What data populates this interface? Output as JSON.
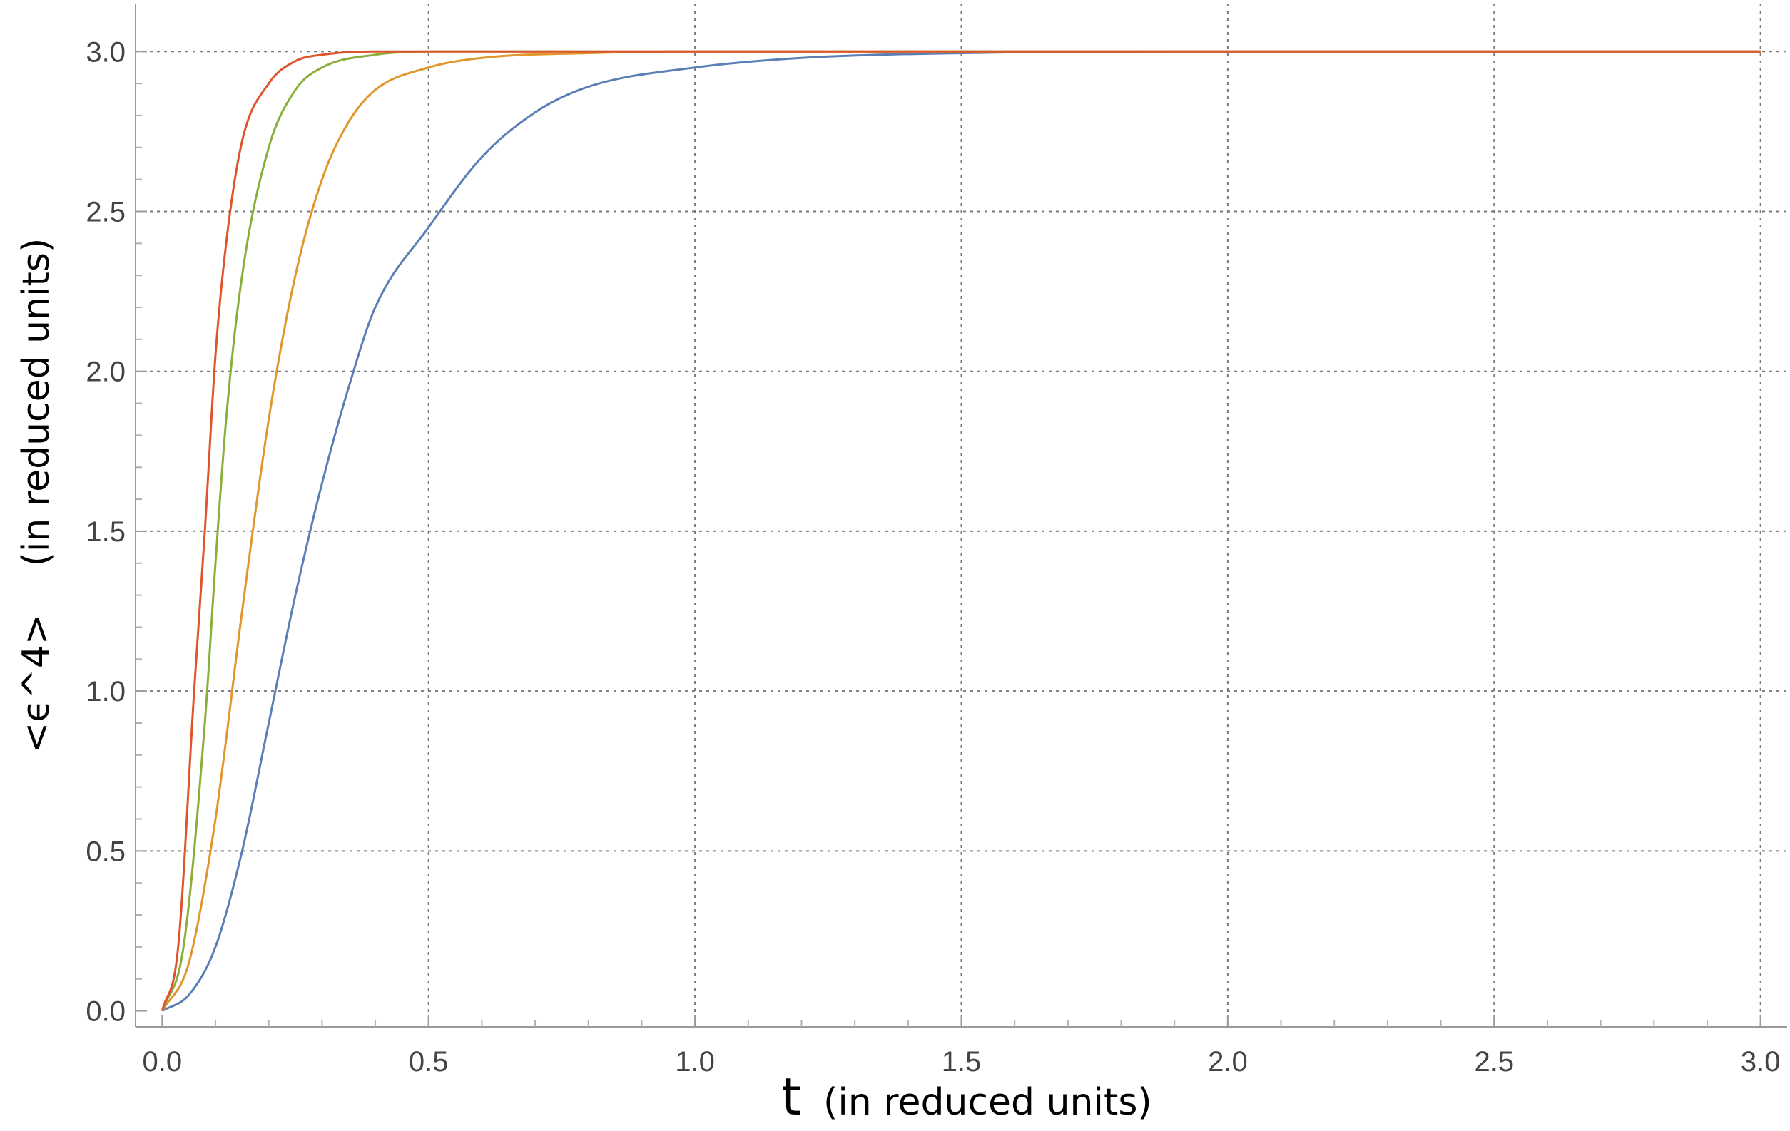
{
  "chart_data": {
    "type": "line",
    "xlabel_symbol": "t",
    "xlabel": "(in reduced units)",
    "ylabel": "<ϵ^4>    (in reduced units)",
    "xlim": [
      -0.05,
      3.05
    ],
    "ylim": [
      -0.05,
      3.15
    ],
    "x_ticks": [
      0.0,
      0.5,
      1.0,
      1.5,
      2.0,
      2.5,
      3.0
    ],
    "x_tick_labels": [
      "0.0",
      "0.5",
      "1.0",
      "1.5",
      "2.0",
      "2.5",
      "3.0"
    ],
    "y_ticks": [
      0.0,
      0.5,
      1.0,
      1.5,
      2.0,
      2.5,
      3.0
    ],
    "y_tick_labels": [
      "0.0",
      "0.5",
      "1.0",
      "1.5",
      "2.0",
      "2.5",
      "3.0"
    ],
    "grid": true,
    "series": [
      {
        "color": "#5b7fb5",
        "points": [
          [
            0.0,
            0.0
          ],
          [
            0.05,
            0.05
          ],
          [
            0.1,
            0.2
          ],
          [
            0.15,
            0.5
          ],
          [
            0.2,
            0.9
          ],
          [
            0.25,
            1.3
          ],
          [
            0.3,
            1.65
          ],
          [
            0.35,
            1.95
          ],
          [
            0.4,
            2.2
          ],
          [
            0.5,
            2.45
          ],
          [
            0.6,
            2.67
          ],
          [
            0.7,
            2.81
          ],
          [
            0.8,
            2.89
          ],
          [
            1.0,
            2.95
          ],
          [
            1.2,
            2.98
          ],
          [
            1.5,
            2.995
          ],
          [
            2.0,
            3.0
          ],
          [
            3.0,
            3.0
          ]
        ]
      },
      {
        "color": "#e0962a",
        "points": [
          [
            0.0,
            0.0
          ],
          [
            0.05,
            0.15
          ],
          [
            0.1,
            0.6
          ],
          [
            0.15,
            1.25
          ],
          [
            0.2,
            1.85
          ],
          [
            0.25,
            2.3
          ],
          [
            0.3,
            2.6
          ],
          [
            0.35,
            2.78
          ],
          [
            0.4,
            2.88
          ],
          [
            0.5,
            2.95
          ],
          [
            0.6,
            2.98
          ],
          [
            0.8,
            2.995
          ],
          [
            1.0,
            3.0
          ],
          [
            3.0,
            3.0
          ]
        ]
      },
      {
        "color": "#8aae3a",
        "points": [
          [
            0.0,
            0.0
          ],
          [
            0.04,
            0.2
          ],
          [
            0.08,
            0.9
          ],
          [
            0.1,
            1.4
          ],
          [
            0.12,
            1.85
          ],
          [
            0.15,
            2.3
          ],
          [
            0.2,
            2.7
          ],
          [
            0.25,
            2.88
          ],
          [
            0.3,
            2.95
          ],
          [
            0.4,
            2.99
          ],
          [
            0.5,
            3.0
          ],
          [
            3.0,
            3.0
          ]
        ]
      },
      {
        "color": "#e0542c",
        "points": [
          [
            0.0,
            0.0
          ],
          [
            0.03,
            0.2
          ],
          [
            0.06,
            1.0
          ],
          [
            0.08,
            1.5
          ],
          [
            0.1,
            2.05
          ],
          [
            0.12,
            2.4
          ],
          [
            0.15,
            2.72
          ],
          [
            0.2,
            2.9
          ],
          [
            0.25,
            2.97
          ],
          [
            0.3,
            2.99
          ],
          [
            0.4,
            3.0
          ],
          [
            3.0,
            3.0
          ]
        ]
      }
    ]
  }
}
